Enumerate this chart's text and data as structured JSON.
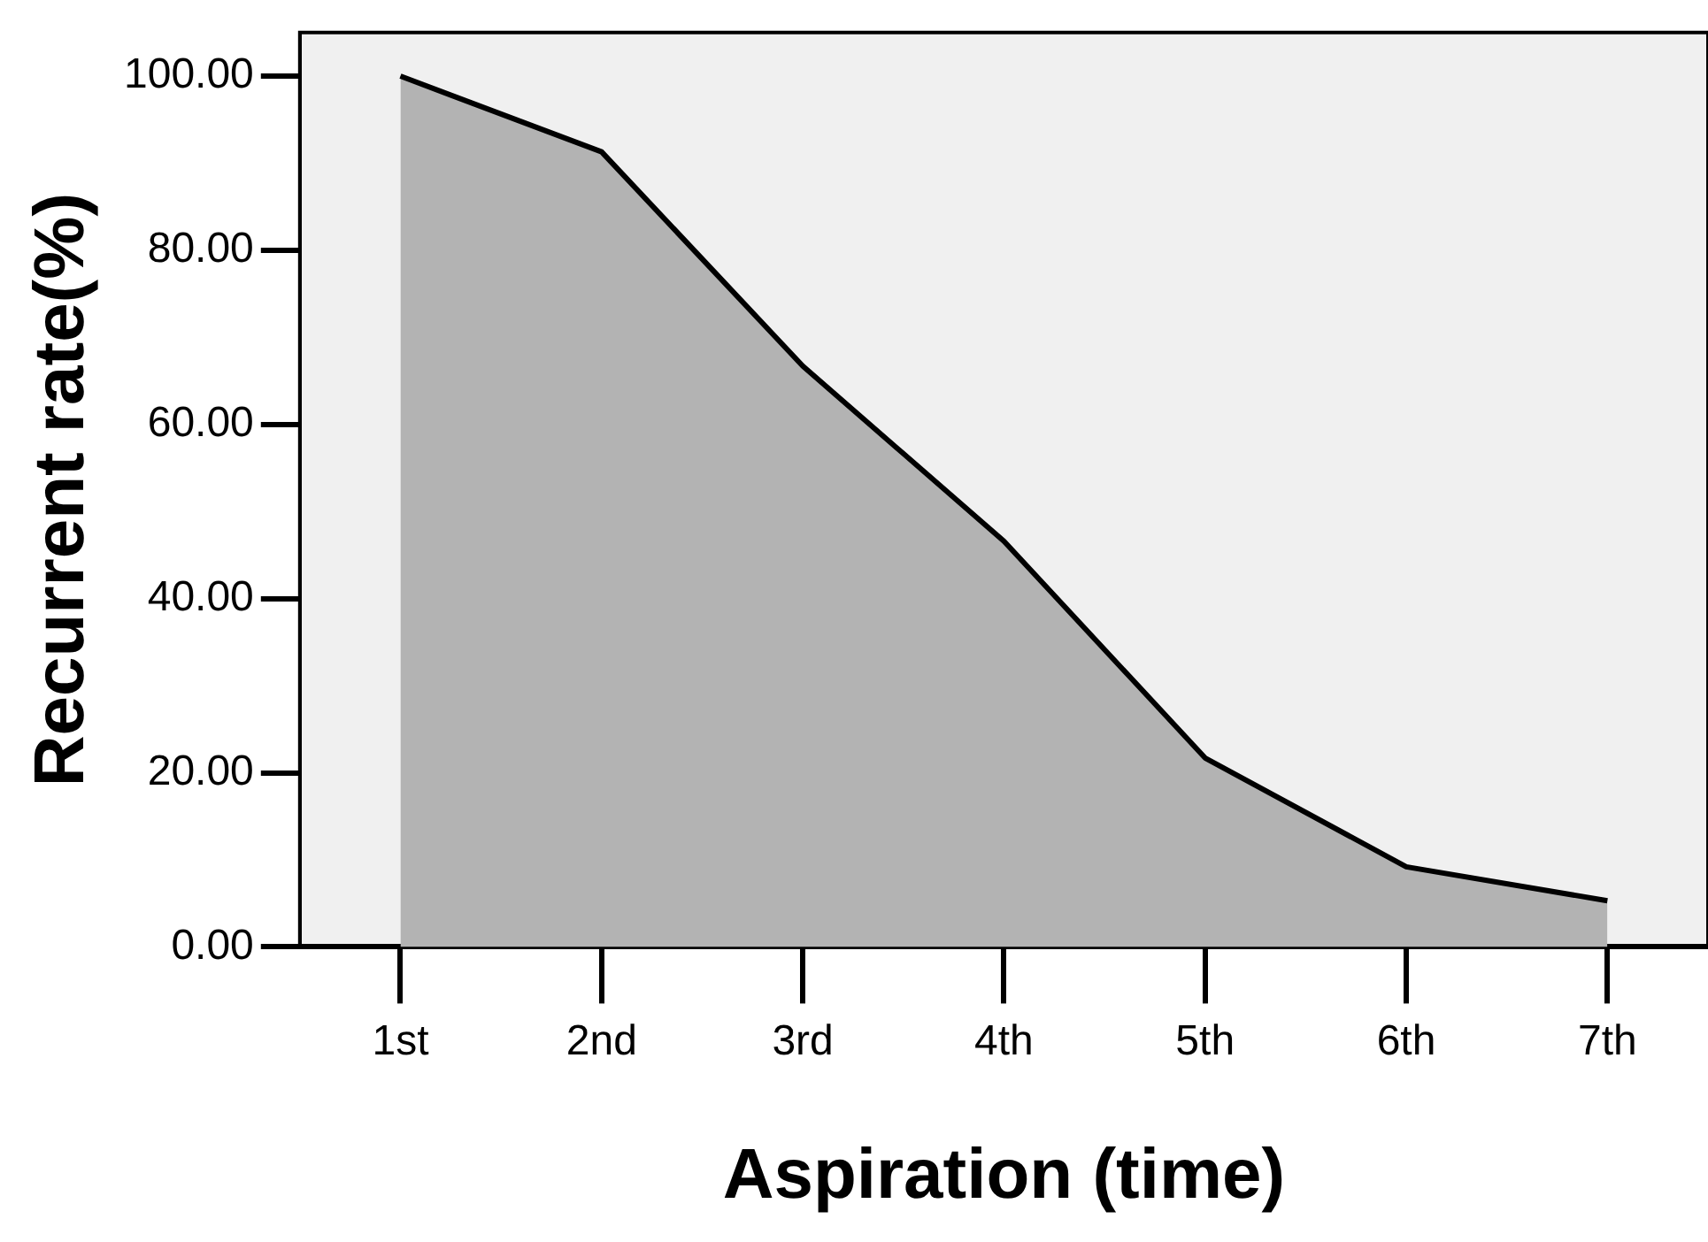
{
  "chart_data": {
    "type": "area",
    "xlabel": "Aspiration (time)",
    "ylabel": "Recurrent rate(%)",
    "categories": [
      "1st",
      "2nd",
      "3rd",
      "4th",
      "5th",
      "6th",
      "7th"
    ],
    "values": [
      100,
      91.3,
      66.7,
      46.6,
      21.7,
      9.2,
      5.3
    ],
    "color": "#b3b3b3",
    "ylim": [
      0,
      105
    ],
    "yticks": [
      {
        "value": 0,
        "label": "0.00"
      },
      {
        "value": 20,
        "label": "20.00"
      },
      {
        "value": 40,
        "label": "40.00"
      },
      {
        "value": 60,
        "label": "60.00"
      },
      {
        "value": 80,
        "label": "80.00"
      },
      {
        "value": 100,
        "label": "100.00"
      }
    ],
    "grid": false
  }
}
